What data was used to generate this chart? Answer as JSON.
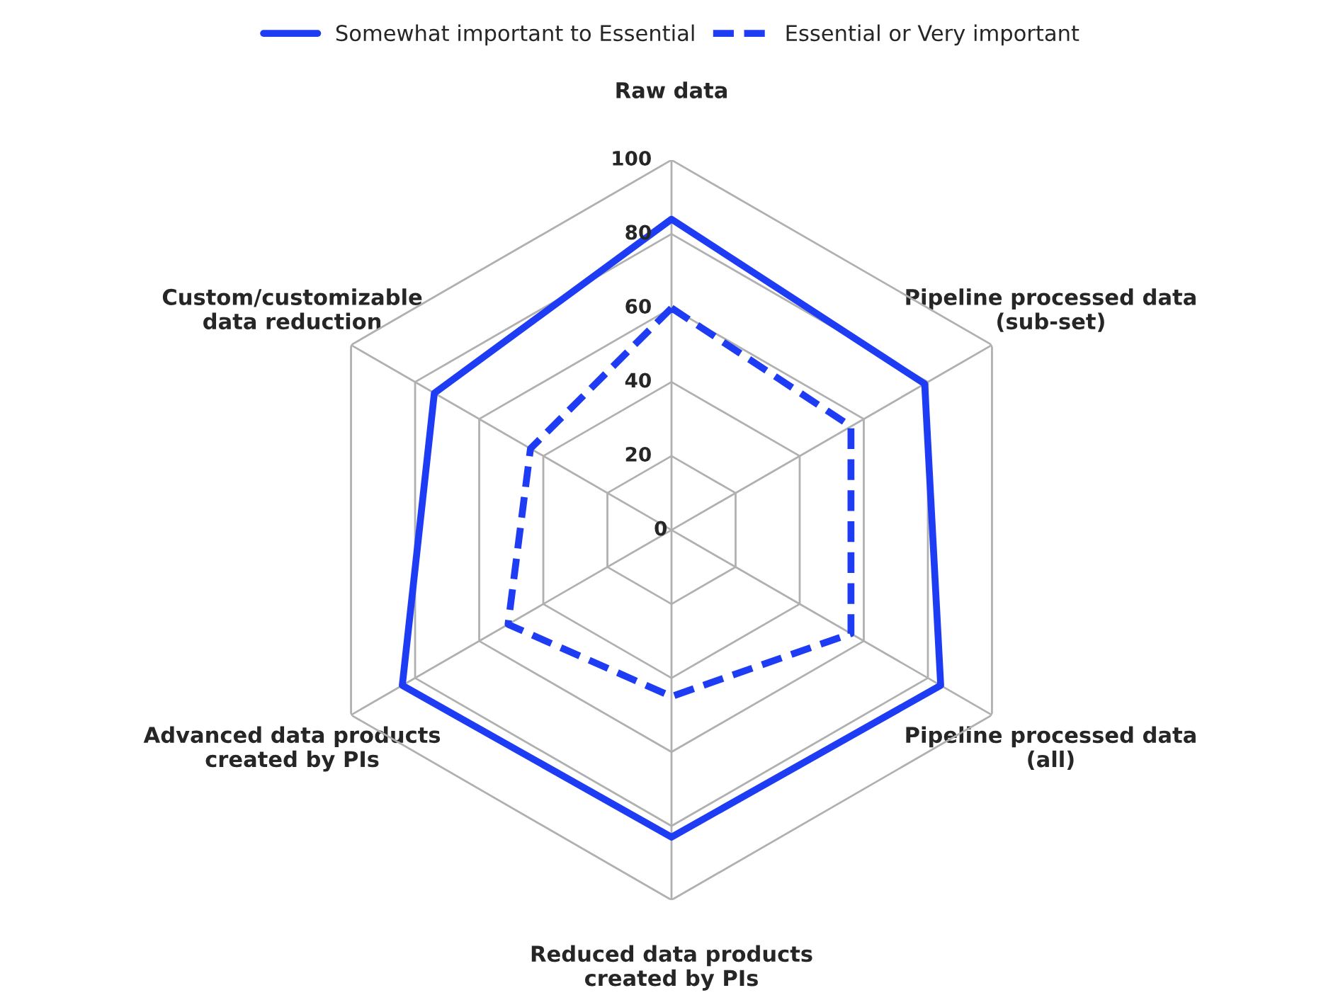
{
  "chart_data": {
    "type": "radar",
    "categories": [
      "Raw data",
      "Pipeline processed data\n(sub-set)",
      "Pipeline processed data\n(all)",
      "Reduced data products\ncreated by PIs",
      "Advanced data products\ncreated by PIs",
      "Custom/customizable\ndata reduction"
    ],
    "series": [
      {
        "name": "Somewhat important to Essential",
        "color": "#1f3cf5",
        "line_style": "solid",
        "values": [
          84,
          79,
          84,
          83,
          84,
          74
        ]
      },
      {
        "name": "Essential or Very important",
        "color": "#1f3cf5",
        "line_style": "dashed",
        "values": [
          60,
          56,
          56,
          45,
          51,
          44
        ]
      }
    ],
    "ylim": [
      0,
      100
    ],
    "yticks": [
      0,
      20,
      40,
      60,
      80,
      100
    ],
    "grid": true,
    "legend": "top",
    "marker": "none"
  }
}
